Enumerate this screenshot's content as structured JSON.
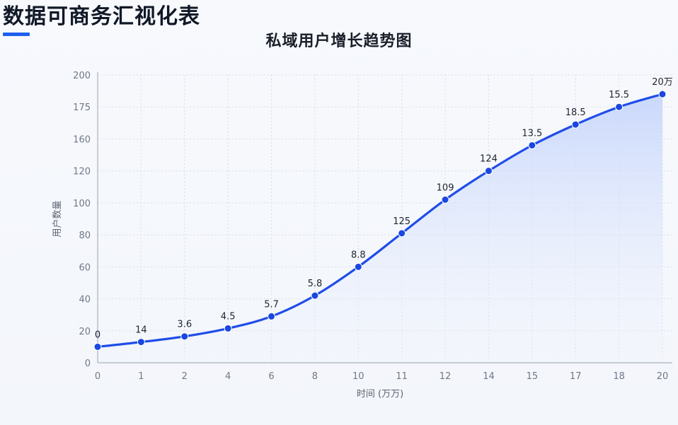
{
  "page": {
    "heading": "数据可商务汇视化表"
  },
  "colors": {
    "accent": "#1f5ff0",
    "line": "#1f4de8",
    "point": "#1a47e0",
    "area_top": "#c7d6fb",
    "grid": "#d7dde8"
  },
  "chart_data": {
    "type": "line",
    "title": "私域用户增长趋势图",
    "xlabel": "时间 (万万)",
    "ylabel": "用户数量",
    "categories": [
      "0",
      "1",
      "2",
      "4",
      "6",
      "8",
      "10",
      "11",
      "12",
      "14",
      "15",
      "17",
      "18",
      "20"
    ],
    "yticks": [
      "0",
      "20",
      "40",
      "60",
      "80",
      "100",
      "120",
      "160",
      "175",
      "200"
    ],
    "ylim": [
      0,
      180
    ],
    "grid": true,
    "area_fill": true,
    "series": [
      {
        "values": [
          10,
          13,
          16.5,
          21.5,
          29,
          42,
          60,
          81,
          102,
          120,
          136,
          149,
          160,
          168
        ],
        "labels": [
          "0",
          "14",
          "3.6",
          "4.5",
          "5.7",
          "5.8",
          "8.8",
          "125",
          "109",
          "124",
          "13.5",
          "18.5",
          "15.5",
          "20万"
        ]
      }
    ]
  }
}
